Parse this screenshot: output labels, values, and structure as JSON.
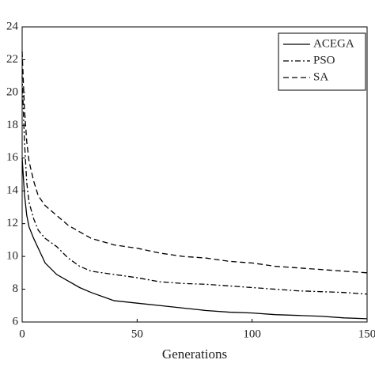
{
  "chart_data": {
    "type": "line",
    "xlabel": "Generations",
    "x": [
      0,
      1,
      2,
      3,
      5,
      7,
      10,
      15,
      20,
      25,
      30,
      40,
      50,
      60,
      70,
      80,
      90,
      100,
      110,
      120,
      130,
      140,
      150
    ],
    "series": [
      {
        "name": "ACEGA",
        "color": "#000000",
        "dash": "solid",
        "values": [
          16,
          13.8,
          12.5,
          11.8,
          11.1,
          10.5,
          9.6,
          8.9,
          8.5,
          8.1,
          7.8,
          7.3,
          7.15,
          7.0,
          6.85,
          6.7,
          6.6,
          6.55,
          6.45,
          6.4,
          6.35,
          6.25,
          6.2
        ]
      },
      {
        "name": "PSO",
        "color": "#000000",
        "dash": "dashdot",
        "values": [
          21,
          17,
          14.5,
          13.3,
          12.3,
          11.6,
          11.1,
          10.6,
          9.9,
          9.4,
          9.1,
          8.9,
          8.7,
          8.45,
          8.35,
          8.3,
          8.2,
          8.1,
          8.0,
          7.9,
          7.85,
          7.8,
          7.7
        ]
      },
      {
        "name": "SA",
        "color": "#000000",
        "dash": "dashed",
        "values": [
          22.5,
          19,
          17,
          15.8,
          14.6,
          13.7,
          13.1,
          12.5,
          11.9,
          11.5,
          11.1,
          10.7,
          10.5,
          10.2,
          10.0,
          9.9,
          9.7,
          9.6,
          9.4,
          9.3,
          9.2,
          9.1,
          9.0
        ]
      }
    ],
    "xlim": [
      0,
      150
    ],
    "xticks": [
      0,
      50,
      100,
      150
    ],
    "ylim": [
      6,
      24
    ],
    "yticks": [
      6,
      8,
      10,
      12,
      14,
      16,
      18,
      20,
      22,
      24
    ],
    "legend": "upper right"
  }
}
